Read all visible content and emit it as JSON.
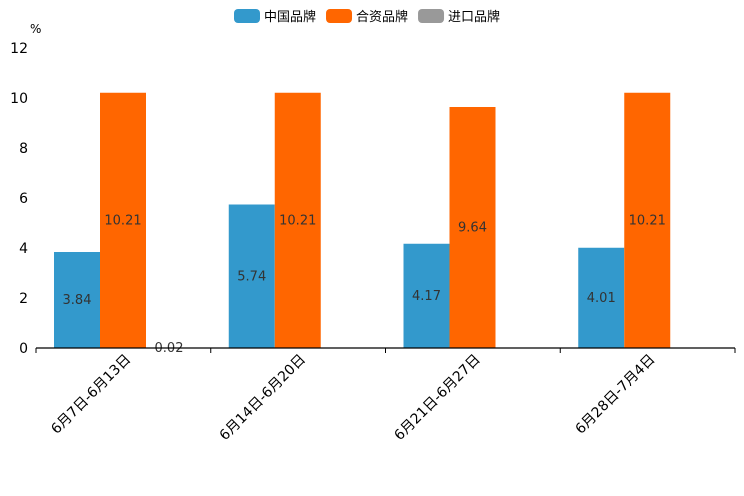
{
  "chart_data": {
    "type": "bar",
    "unit": "%",
    "ylim": [
      0,
      12
    ],
    "yticks": [
      0,
      2,
      4,
      6,
      8,
      10,
      12
    ],
    "categories": [
      "6月7日-6月13日",
      "6月14日-6月20日",
      "6月21日-6月27日",
      "6月28日-7月4日"
    ],
    "series": [
      {
        "name": "中国品牌",
        "color": "#3399cc",
        "values": [
          3.84,
          5.74,
          4.17,
          4.01
        ],
        "labels": [
          "3.84",
          "5.74",
          "4.17",
          "4.01"
        ]
      },
      {
        "name": "合资品牌",
        "color": "#ff6600",
        "values": [
          10.21,
          10.21,
          9.64,
          10.21
        ],
        "labels": [
          "10.21",
          "10.21",
          "9.64",
          "10.21"
        ]
      },
      {
        "name": "进口品牌",
        "color": "#999999",
        "values": [
          0.02,
          null,
          null,
          null
        ],
        "labels": [
          "0.02",
          null,
          null,
          null
        ]
      }
    ]
  }
}
